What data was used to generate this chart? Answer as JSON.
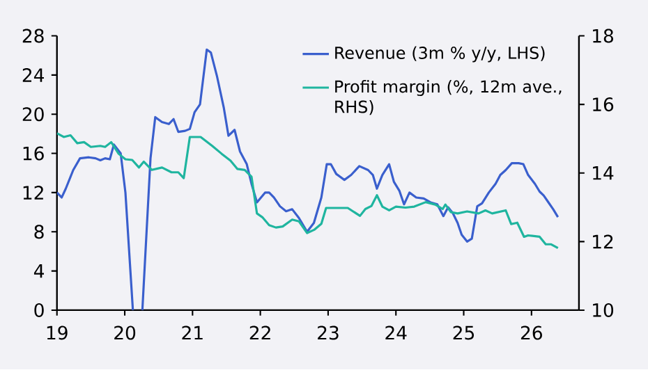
{
  "chart_data": {
    "type": "line",
    "legend": "top right",
    "xlim": [
      19,
      26.7
    ],
    "xticks": [
      19,
      20,
      21,
      22,
      23,
      24,
      25,
      26
    ],
    "ylim": [
      0,
      28
    ],
    "yticks": [
      0,
      4,
      8,
      12,
      16,
      20,
      24,
      28
    ],
    "y2lim": [
      10,
      18
    ],
    "y2ticks": [
      10,
      12,
      14,
      16,
      18
    ],
    "series": [
      {
        "name": "Revenue (3m % y/y, LHS)",
        "color": "#3a5fcd",
        "x": [
          19.0,
          19.07,
          19.13,
          19.24,
          19.34,
          19.47,
          19.57,
          19.64,
          19.71,
          19.78,
          19.84,
          19.94,
          20.01,
          20.12,
          20.19,
          20.26,
          20.38,
          20.45,
          20.55,
          20.65,
          20.72,
          20.79,
          20.89,
          20.96,
          21.03,
          21.11,
          21.21,
          21.27,
          21.36,
          21.46,
          21.53,
          21.62,
          21.7,
          21.8,
          21.87,
          21.95,
          22.07,
          22.13,
          22.2,
          22.29,
          22.38,
          22.47,
          22.57,
          22.69,
          22.79,
          22.9,
          22.98,
          23.04,
          23.12,
          23.24,
          23.34,
          23.46,
          23.59,
          23.66,
          23.72,
          23.8,
          23.9,
          23.97,
          24.05,
          24.12,
          24.2,
          24.3,
          24.41,
          24.51,
          24.61,
          24.7,
          24.77,
          24.84,
          24.91,
          24.97,
          25.05,
          25.12,
          25.2,
          25.27,
          25.37,
          25.47,
          25.54,
          25.62,
          25.71,
          25.81,
          25.88,
          25.95,
          26.05,
          26.12,
          26.18,
          26.25,
          26.32,
          26.39
        ],
        "values": [
          12.0,
          11.5,
          12.4,
          14.3,
          15.5,
          15.6,
          15.5,
          15.3,
          15.5,
          15.4,
          16.9,
          16.0,
          12.0,
          0,
          null,
          0,
          15.5,
          19.7,
          19.2,
          19.0,
          19.5,
          18.2,
          18.3,
          18.5,
          20.2,
          21.0,
          26.6,
          26.3,
          23.9,
          20.7,
          17.8,
          18.4,
          16.2,
          14.9,
          12.9,
          11.0,
          12.0,
          12.0,
          11.5,
          10.6,
          10.1,
          10.3,
          9.4,
          8.0,
          8.9,
          11.5,
          14.9,
          14.9,
          13.9,
          13.3,
          13.8,
          14.7,
          14.3,
          13.8,
          12.4,
          13.8,
          14.9,
          13.1,
          12.2,
          10.8,
          12.0,
          11.5,
          11.4,
          11.0,
          10.8,
          9.6,
          10.5,
          9.9,
          8.9,
          7.7,
          7.0,
          7.3,
          10.6,
          10.9,
          12.0,
          12.9,
          13.8,
          14.3,
          15.0,
          15.0,
          14.9,
          13.8,
          12.9,
          12.1,
          11.7,
          11.0,
          10.3,
          9.5
        ]
      },
      {
        "name": "Profit margin (%, 12m ave., RHS)",
        "color": "#1fb59f",
        "axis": "y2",
        "x": [
          19.0,
          19.1,
          19.2,
          19.3,
          19.4,
          19.5,
          19.64,
          19.71,
          19.8,
          19.91,
          20.01,
          20.11,
          20.21,
          20.28,
          20.4,
          20.55,
          20.69,
          20.79,
          20.87,
          20.96,
          21.12,
          21.29,
          21.43,
          21.56,
          21.66,
          21.77,
          21.87,
          21.95,
          22.03,
          22.13,
          22.23,
          22.33,
          22.47,
          22.57,
          22.69,
          22.8,
          22.9,
          22.97,
          23.12,
          23.29,
          23.47,
          23.55,
          23.64,
          23.72,
          23.8,
          23.9,
          24.0,
          24.14,
          24.27,
          24.44,
          24.58,
          24.69,
          24.73,
          24.81,
          24.91,
          25.05,
          25.22,
          25.32,
          25.42,
          25.62,
          25.7,
          25.79,
          25.89,
          25.95,
          26.12,
          26.21,
          26.29,
          26.39
        ],
        "values": [
          15.16,
          15.05,
          15.1,
          14.87,
          14.9,
          14.76,
          14.79,
          14.76,
          14.9,
          14.56,
          14.4,
          14.38,
          14.16,
          14.33,
          14.09,
          14.16,
          14.02,
          14.02,
          13.85,
          15.05,
          15.05,
          14.79,
          14.56,
          14.36,
          14.12,
          14.09,
          13.89,
          12.82,
          12.71,
          12.48,
          12.41,
          12.44,
          12.64,
          12.59,
          12.25,
          12.35,
          12.52,
          12.98,
          12.98,
          12.98,
          12.75,
          12.95,
          13.04,
          13.35,
          13.02,
          12.91,
          13.02,
          12.99,
          13.02,
          13.15,
          13.08,
          12.95,
          13.08,
          12.86,
          12.82,
          12.88,
          12.82,
          12.91,
          12.82,
          12.91,
          12.51,
          12.55,
          12.14,
          12.18,
          12.14,
          11.92,
          11.92,
          11.81
        ]
      }
    ]
  }
}
